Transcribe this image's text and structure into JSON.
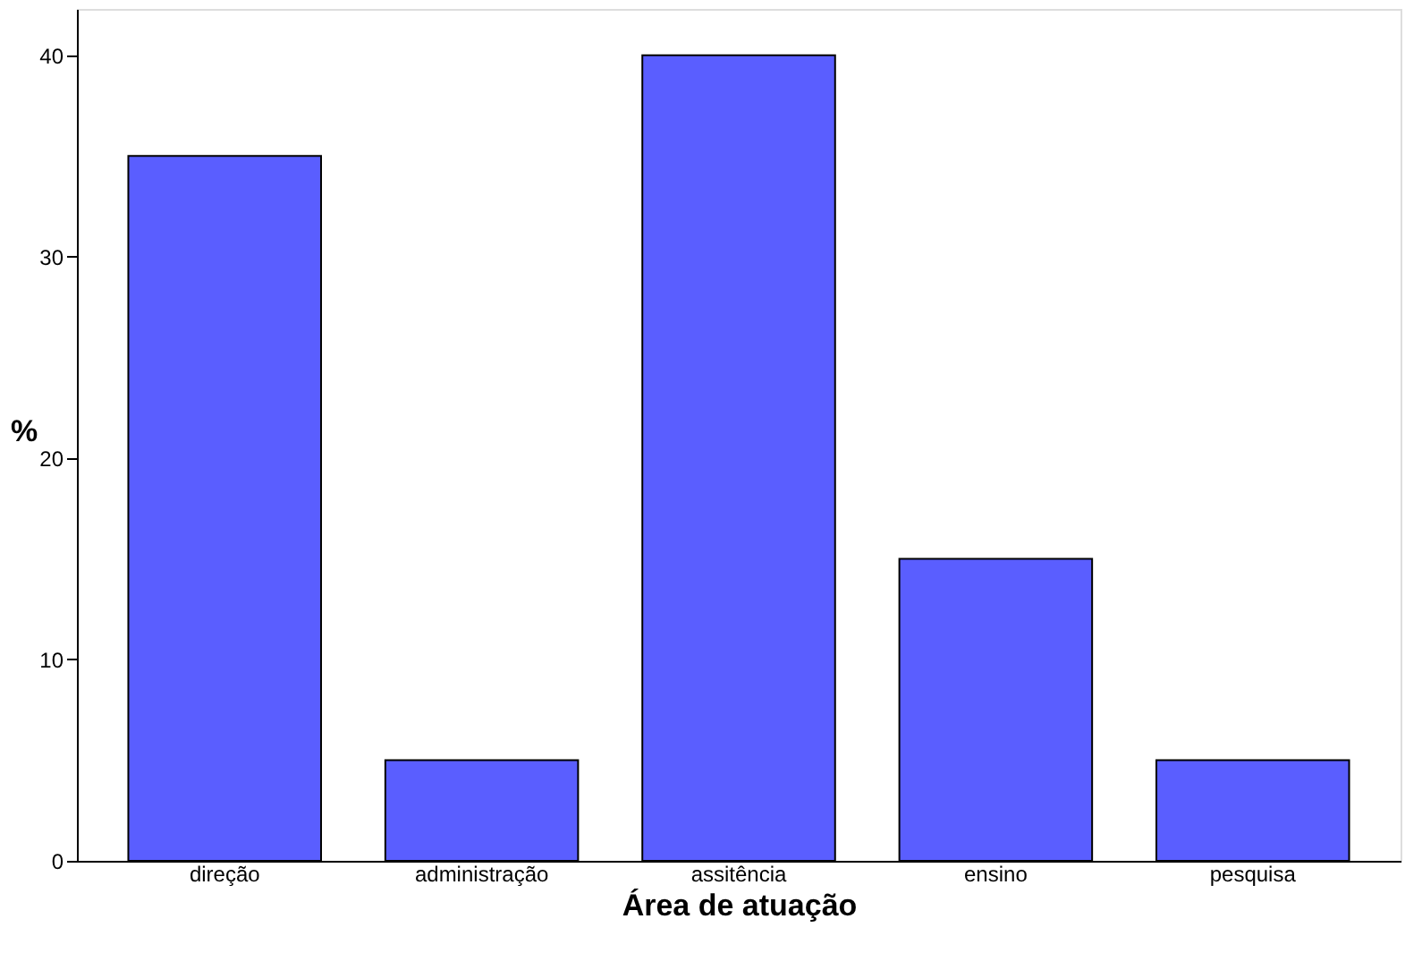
{
  "chart_data": {
    "type": "bar",
    "xlabel": "Área de atuação",
    "ylabel": "%",
    "categories": [
      "direção",
      "administração",
      "assitência",
      "ensino",
      "pesquisa"
    ],
    "values": [
      35,
      5,
      40,
      15,
      5
    ],
    "color": "#5a5eff",
    "ylim": [
      0,
      42.3
    ],
    "yticks": [
      0,
      10,
      20,
      30,
      40
    ],
    "grid": false
  }
}
